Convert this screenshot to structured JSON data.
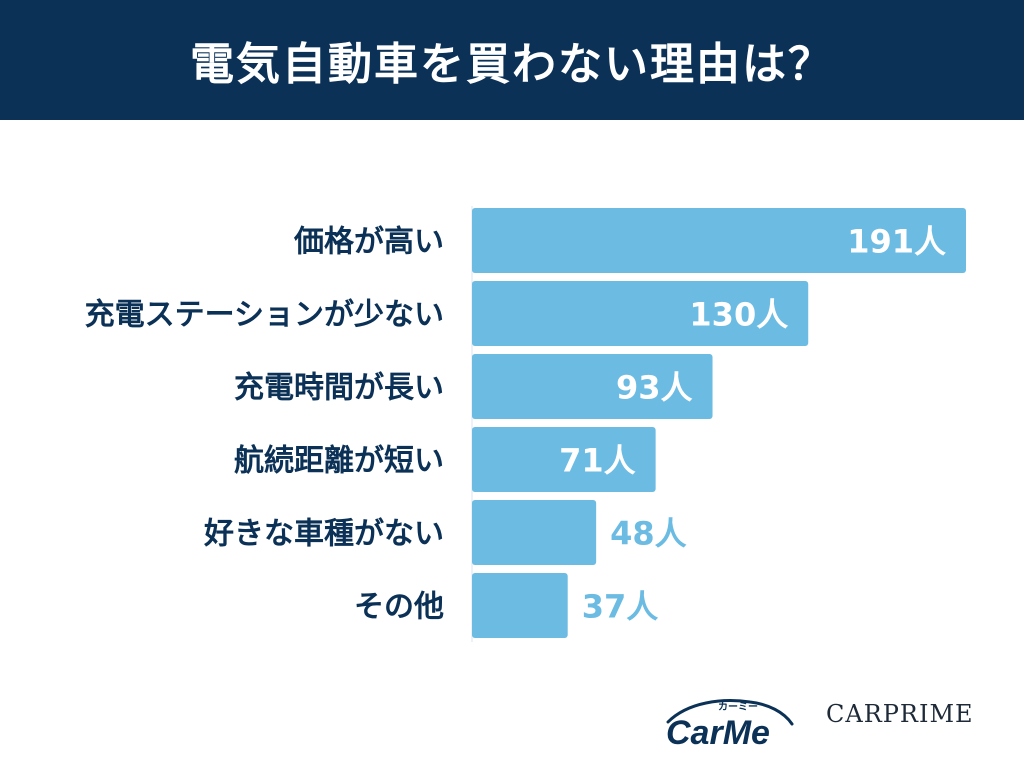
{
  "header": {
    "title": "電気自動車を買わない理由は？"
  },
  "colors": {
    "header_bg": "#0b3157",
    "bar": "#6bbbe3",
    "label": "#0b3157",
    "value_inside": "#ffffff",
    "value_outside": "#6bbbe3"
  },
  "chart_data": {
    "type": "bar",
    "orientation": "horizontal",
    "categories": [
      "価格が高い",
      "充電ステーションが少ない",
      "充電時間が長い",
      "航続距離が短い",
      "好きな車種がない",
      "その他"
    ],
    "values": [
      191,
      130,
      93,
      71,
      48,
      37
    ],
    "value_suffix": "人",
    "title": "",
    "xlabel": "",
    "ylabel": "",
    "grid": false,
    "legend": "none"
  },
  "logos": {
    "carme_word": "CarMe",
    "carme_kana": "カーミー",
    "carprime": "CARPRIME"
  }
}
